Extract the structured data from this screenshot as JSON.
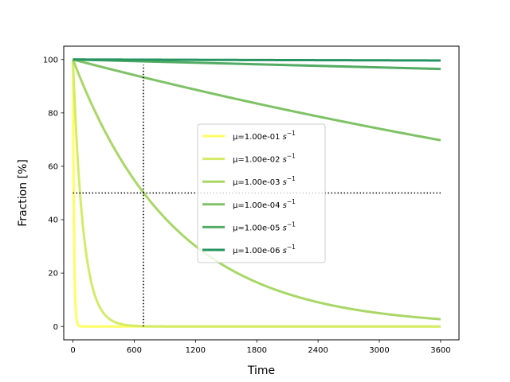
{
  "chart_data": {
    "type": "line",
    "xlabel": "Time",
    "ylabel": "Fraction [%]",
    "xlim": [
      -90,
      3780
    ],
    "ylim": [
      -5,
      105
    ],
    "xticks": [
      0,
      600,
      1200,
      1800,
      2400,
      3000,
      3600
    ],
    "yticks": [
      0,
      20,
      40,
      60,
      80,
      100
    ],
    "model": "100*exp(-mu*t)",
    "legend_position": "center",
    "series": [
      {
        "name": "μ=1.00e-01 s⁻¹",
        "label_main": "μ=1.00e-01 ",
        "label_unit": "s",
        "label_exp": "−1",
        "mu": 0.1,
        "color": "#fefe62"
      },
      {
        "name": "μ=1.00e-02 s⁻¹",
        "label_main": "μ=1.00e-02 ",
        "label_unit": "s",
        "label_exp": "−1",
        "mu": 0.01,
        "color": "#d4eb68"
      },
      {
        "name": "μ=1.00e-03 s⁻¹",
        "label_main": "μ=1.00e-03 ",
        "label_unit": "s",
        "label_exp": "−1",
        "mu": 0.001,
        "color": "#a9d766"
      },
      {
        "name": "μ=1.00e-04 s⁻¹",
        "label_main": "μ=1.00e-04 ",
        "label_unit": "s",
        "label_exp": "−1",
        "mu": 0.0001,
        "color": "#7ec265"
      },
      {
        "name": "μ=1.00e-05 s⁻¹",
        "label_main": "μ=1.00e-05 ",
        "label_unit": "s",
        "label_exp": "−1",
        "mu": 1e-05,
        "color": "#52ac63"
      },
      {
        "name": "μ=1.00e-06 s⁻¹",
        "label_main": "μ=1.00e-06 ",
        "label_unit": "s",
        "label_exp": "−1",
        "mu": 1e-06,
        "color": "#259461"
      }
    ],
    "reference_lines": [
      {
        "kind": "horizontal",
        "y": 50,
        "x_range": [
          0,
          3600
        ],
        "style": "dotted",
        "color": "#000000"
      },
      {
        "kind": "vertical",
        "x": 690,
        "y_range": [
          0,
          98
        ],
        "style": "dotted",
        "color": "#000000"
      }
    ]
  }
}
